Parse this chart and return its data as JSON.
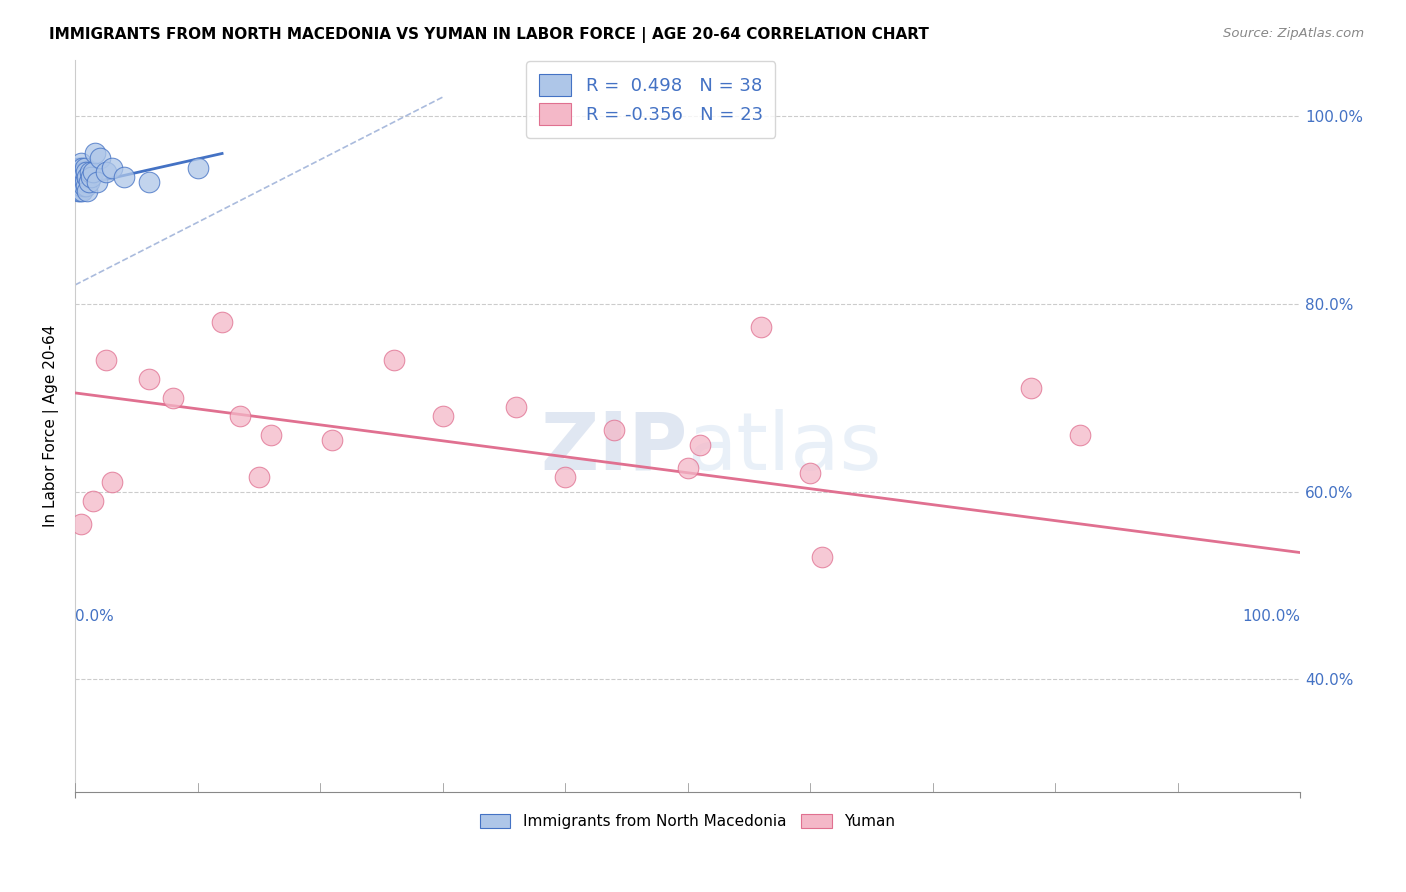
{
  "title": "IMMIGRANTS FROM NORTH MACEDONIA VS YUMAN IN LABOR FORCE | AGE 20-64 CORRELATION CHART",
  "source": "Source: ZipAtlas.com",
  "ylabel": "In Labor Force | Age 20-64",
  "blue_R": 0.498,
  "blue_N": 38,
  "pink_R": -0.356,
  "pink_N": 23,
  "blue_color": "#aec6e8",
  "blue_line_color": "#4472c4",
  "pink_color": "#f4b8c8",
  "pink_line_color": "#e07090",
  "watermark_zip": "ZIP",
  "watermark_atlas": "atlas",
  "blue_scatter_x": [
    0.001,
    0.001,
    0.002,
    0.002,
    0.002,
    0.003,
    0.003,
    0.003,
    0.004,
    0.004,
    0.004,
    0.005,
    0.005,
    0.005,
    0.005,
    0.006,
    0.006,
    0.006,
    0.007,
    0.007,
    0.008,
    0.008,
    0.009,
    0.009,
    0.01,
    0.01,
    0.011,
    0.012,
    0.013,
    0.015,
    0.016,
    0.018,
    0.02,
    0.025,
    0.03,
    0.04,
    0.06,
    0.1
  ],
  "blue_scatter_y": [
    0.935,
    0.925,
    0.945,
    0.93,
    0.92,
    0.94,
    0.935,
    0.93,
    0.945,
    0.935,
    0.92,
    0.95,
    0.94,
    0.935,
    0.925,
    0.945,
    0.935,
    0.92,
    0.94,
    0.925,
    0.945,
    0.93,
    0.94,
    0.925,
    0.935,
    0.92,
    0.93,
    0.94,
    0.935,
    0.94,
    0.96,
    0.93,
    0.955,
    0.94,
    0.945,
    0.935,
    0.93,
    0.945
  ],
  "pink_scatter_x": [
    0.005,
    0.015,
    0.025,
    0.03,
    0.06,
    0.08,
    0.12,
    0.135,
    0.15,
    0.16,
    0.21,
    0.26,
    0.3,
    0.36,
    0.4,
    0.44,
    0.5,
    0.51,
    0.56,
    0.6,
    0.61,
    0.78,
    0.82
  ],
  "pink_scatter_y": [
    0.565,
    0.59,
    0.74,
    0.61,
    0.72,
    0.7,
    0.78,
    0.68,
    0.615,
    0.66,
    0.655,
    0.74,
    0.68,
    0.69,
    0.615,
    0.665,
    0.625,
    0.65,
    0.775,
    0.62,
    0.53,
    0.71,
    0.66
  ],
  "pink_line_x0": 0.0,
  "pink_line_y0": 0.705,
  "pink_line_x1": 1.0,
  "pink_line_y1": 0.535,
  "blue_line_x0": 0.0,
  "blue_line_y0": 0.925,
  "blue_line_x1": 0.12,
  "blue_line_y1": 0.96,
  "ref_line_x0": 0.0,
  "ref_line_y0": 0.82,
  "ref_line_x1": 0.3,
  "ref_line_y1": 1.02,
  "xlim": [
    0.0,
    1.0
  ],
  "ylim": [
    0.28,
    1.06
  ],
  "yticks": [
    0.4,
    0.6,
    0.8,
    1.0
  ],
  "ytick_labels": [
    "40.0%",
    "60.0%",
    "80.0%",
    "100.0%"
  ],
  "xtick_labels_pos": [
    0.0,
    1.0
  ],
  "xtick_labels": [
    "0.0%",
    "100.0%"
  ],
  "legend_label1": "R =  0.498   N = 38",
  "legend_label2": "R = -0.356   N = 23",
  "bottom_label1": "Immigrants from North Macedonia",
  "bottom_label2": "Yuman"
}
